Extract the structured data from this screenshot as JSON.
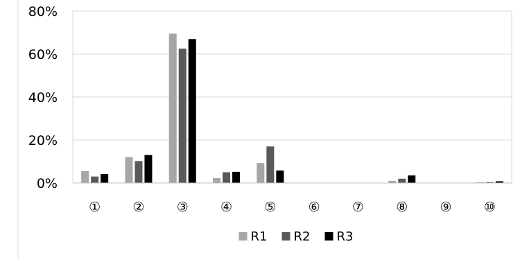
{
  "chart_data": {
    "type": "bar",
    "categories": [
      "①",
      "②",
      "③",
      "④",
      "⑤",
      "⑥",
      "⑦",
      "⑧",
      "⑨",
      "⑩"
    ],
    "series": [
      {
        "name": "R1",
        "color": "#a6a6a6",
        "values": [
          5.5,
          12.0,
          69.5,
          2.3,
          9.3,
          0,
          0,
          1.0,
          0,
          0.3
        ]
      },
      {
        "name": "R2",
        "color": "#595959",
        "values": [
          3.0,
          10.2,
          62.5,
          5.0,
          17.0,
          0,
          0,
          2.0,
          0,
          0.4
        ]
      },
      {
        "name": "R3",
        "color": "#000000",
        "values": [
          4.2,
          13.0,
          67.0,
          5.2,
          5.8,
          0,
          0,
          3.5,
          0,
          0.8
        ]
      }
    ],
    "ylim": [
      0,
      80
    ],
    "yticks": [
      0,
      20,
      40,
      60,
      80
    ],
    "ytick_labels": [
      "0%",
      "20%",
      "40%",
      "60%",
      "80%"
    ],
    "grid": true,
    "legend": "bottom",
    "title": "",
    "xlabel": "",
    "ylabel": ""
  }
}
